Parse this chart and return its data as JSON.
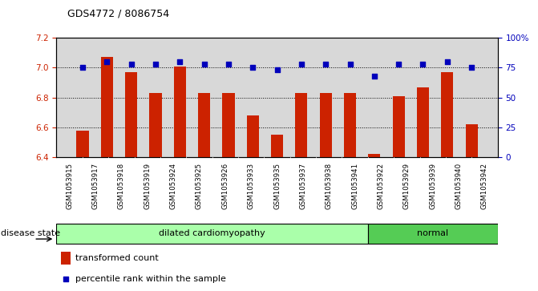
{
  "title": "GDS4772 / 8086754",
  "samples": [
    "GSM1053915",
    "GSM1053917",
    "GSM1053918",
    "GSM1053919",
    "GSM1053924",
    "GSM1053925",
    "GSM1053926",
    "GSM1053933",
    "GSM1053935",
    "GSM1053937",
    "GSM1053938",
    "GSM1053941",
    "GSM1053922",
    "GSM1053929",
    "GSM1053939",
    "GSM1053940",
    "GSM1053942"
  ],
  "bar_values": [
    6.58,
    7.07,
    6.97,
    6.83,
    7.01,
    6.83,
    6.83,
    6.68,
    6.55,
    6.83,
    6.83,
    6.83,
    6.42,
    6.81,
    6.87,
    6.97,
    6.62
  ],
  "dot_values": [
    75,
    80,
    78,
    78,
    80,
    78,
    78,
    75,
    73,
    78,
    78,
    78,
    68,
    78,
    78,
    80,
    75
  ],
  "disease_state": [
    "dilated cardiomyopathy",
    "dilated cardiomyopathy",
    "dilated cardiomyopathy",
    "dilated cardiomyopathy",
    "dilated cardiomyopathy",
    "dilated cardiomyopathy",
    "dilated cardiomyopathy",
    "dilated cardiomyopathy",
    "dilated cardiomyopathy",
    "dilated cardiomyopathy",
    "dilated cardiomyopathy",
    "dilated cardiomyopathy",
    "normal",
    "normal",
    "normal",
    "normal",
    "normal"
  ],
  "ylim_left": [
    6.4,
    7.2
  ],
  "ylim_right": [
    0,
    100
  ],
  "yticks_left": [
    6.4,
    6.6,
    6.8,
    7.0,
    7.2
  ],
  "yticks_right": [
    0,
    25,
    50,
    75,
    100
  ],
  "yticklabels_right": [
    "0",
    "25",
    "50",
    "75",
    "100%"
  ],
  "bar_color": "#cc2200",
  "dot_color": "#0000bb",
  "dilated_color": "#aaffaa",
  "normal_color": "#55cc55",
  "plot_bg_color": "#d8d8d8",
  "xtick_bg_color": "#d8d8d8",
  "bar_base": 6.4,
  "legend_bar_label": "transformed count",
  "legend_dot_label": "percentile rank within the sample",
  "disease_state_label": "disease state"
}
